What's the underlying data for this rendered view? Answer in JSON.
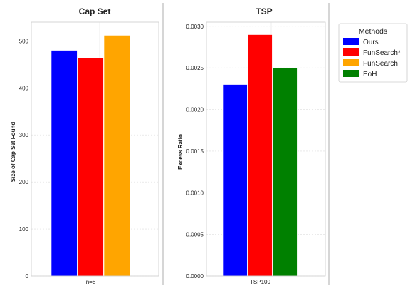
{
  "chart_data": [
    {
      "type": "bar",
      "title": "Cap Set",
      "xlabel": "",
      "ylabel": "Size of Cap Set Found",
      "categories": [
        "n=8"
      ],
      "series": [
        {
          "name": "Ours",
          "values": [
            480
          ],
          "color": "#0000ff"
        },
        {
          "name": "FunSearch*",
          "values": [
            464
          ],
          "color": "#ff0000"
        },
        {
          "name": "FunSearch",
          "values": [
            512
          ],
          "color": "#ffa500"
        }
      ],
      "ylim": [
        0,
        540
      ],
      "yticks": [
        0,
        100,
        200,
        300,
        400,
        500
      ],
      "ytick_labels": [
        "0",
        "100",
        "200",
        "300",
        "400",
        "500"
      ],
      "grid": true
    },
    {
      "type": "bar",
      "title": "TSP",
      "xlabel": "",
      "ylabel": "Excess Ratio",
      "categories": [
        "TSP100"
      ],
      "series": [
        {
          "name": "Ours",
          "values": [
            0.0023
          ],
          "color": "#0000ff"
        },
        {
          "name": "FunSearch*",
          "values": [
            0.0029
          ],
          "color": "#ff0000"
        },
        {
          "name": "EoH",
          "values": [
            0.0025
          ],
          "color": "#008000"
        }
      ],
      "ylim": [
        0,
        0.00305
      ],
      "yticks": [
        0,
        0.0005,
        0.001,
        0.0015,
        0.002,
        0.0025,
        0.003
      ],
      "ytick_labels": [
        "0.0000",
        "0.0005",
        "0.0010",
        "0.0015",
        "0.0020",
        "0.0025",
        "0.0030"
      ],
      "grid": true
    }
  ],
  "legend": {
    "title": "Methods",
    "placement": "right",
    "items": [
      {
        "label": "Ours",
        "color": "#0000ff"
      },
      {
        "label": "FunSearch*",
        "color": "#ff0000"
      },
      {
        "label": "FunSearch",
        "color": "#ffa500"
      },
      {
        "label": "EoH",
        "color": "#008000"
      }
    ]
  }
}
